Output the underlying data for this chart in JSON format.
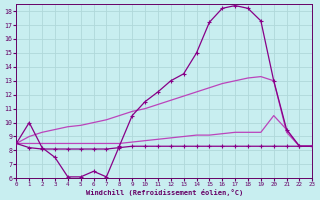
{
  "xlabel": "Windchill (Refroidissement éolien,°C)",
  "xlim": [
    0,
    23
  ],
  "ylim": [
    6,
    18.5
  ],
  "yticks": [
    6,
    7,
    8,
    9,
    10,
    11,
    12,
    13,
    14,
    15,
    16,
    17,
    18
  ],
  "xticks": [
    0,
    1,
    2,
    3,
    4,
    5,
    6,
    7,
    8,
    9,
    10,
    11,
    12,
    13,
    14,
    15,
    16,
    17,
    18,
    19,
    20,
    21,
    22,
    23
  ],
  "bg_color": "#c8eef0",
  "grid_color": "#b0d8da",
  "line_dark": "#880088",
  "line_mid": "#bb44bb",
  "line1_y": [
    8.5,
    10.0,
    8.2,
    7.5,
    6.1,
    6.1,
    6.5,
    6.1,
    8.3,
    10.5,
    11.5,
    12.2,
    13.0,
    13.5,
    15.0,
    17.2,
    18.2,
    18.4,
    18.2,
    17.3,
    13.0,
    9.5,
    8.3,
    8.3
  ],
  "line2_y": [
    8.5,
    9.0,
    9.3,
    9.5,
    9.7,
    9.8,
    10.0,
    10.2,
    10.5,
    10.8,
    11.0,
    11.3,
    11.6,
    11.9,
    12.2,
    12.5,
    12.8,
    13.0,
    13.2,
    13.3,
    13.0,
    9.3,
    8.3,
    8.3
  ],
  "line3_y": [
    8.5,
    8.5,
    8.5,
    8.5,
    8.5,
    8.5,
    8.5,
    8.5,
    8.5,
    8.6,
    8.7,
    8.8,
    8.9,
    9.0,
    9.1,
    9.1,
    9.2,
    9.3,
    9.3,
    9.3,
    10.5,
    9.5,
    8.3,
    8.3
  ],
  "line4_y": [
    8.5,
    8.2,
    8.1,
    8.1,
    8.1,
    8.1,
    8.1,
    8.1,
    8.2,
    8.3,
    8.3,
    8.3,
    8.3,
    8.3,
    8.3,
    8.3,
    8.3,
    8.3,
    8.3,
    8.3,
    8.3,
    8.3,
    8.3,
    8.3
  ]
}
